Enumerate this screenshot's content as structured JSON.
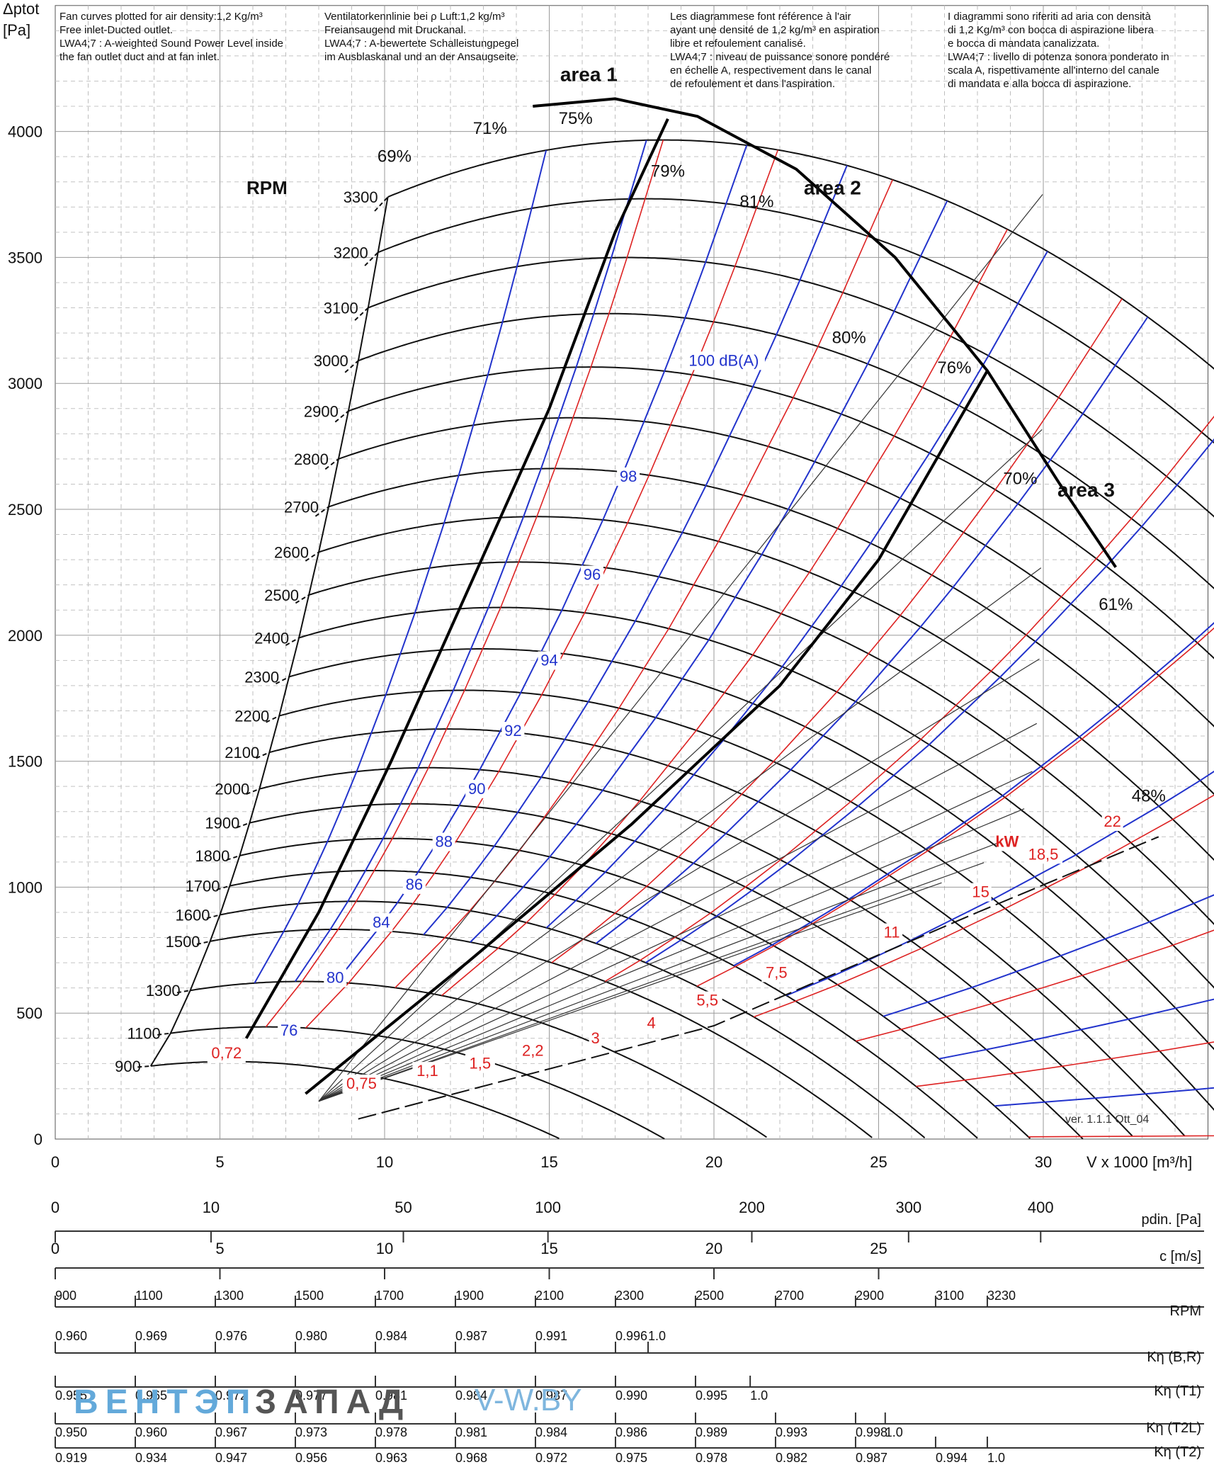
{
  "header": {
    "y_title": "Δptot",
    "y_unit": "[Pa]",
    "x_title": "V x 1000 [m³/h]",
    "rpm_label": "RPM",
    "version": "ver. 1.1.1 Ott_04"
  },
  "notes": {
    "en": [
      "Fan curves plotted for air density:1,2 Kg/m³",
      "Free inlet-Ducted outlet.",
      "LWA4;7 : A-weighted Sound Power Level inside",
      "the fan outlet duct and at fan inlet."
    ],
    "de": [
      "Ventilatorkennlinie bei ρ Luft:1,2 kg/m³",
      "Freiansaugend mit Druckanal.",
      "LWA4;7 : A-bewertete Schalleistungpegel",
      "im Ausblaskanal und an der Ansaugseite."
    ],
    "fr": [
      "Les diagrammese font référence à l'air",
      "ayant une densité de 1,2 kg/m³ en aspiration",
      "libre et refoulement canalisé.",
      "LWA4;7 : niveau de puissance sonore pondéré",
      "en échelle A, respectivement dans le canal",
      "de refoulement et dans l'aspiration."
    ],
    "it": [
      "I diagrammi sono riferiti ad aria con densità",
      "di 1,2 Kg/m³ con bocca di aspirazione libera",
      "e bocca di mandata canalizzata.",
      "LWA4;7 : livello di potenza sonora ponderato in",
      "scala A, rispettivamente all'interno del canale",
      "di mandata e alla bocca di aspirazione."
    ]
  },
  "chart_data": {
    "type": "line",
    "x_label": "V x 1000 [m³/h]",
    "y_label": "Δptot [Pa]",
    "xlim": [
      0,
      35
    ],
    "ylim": [
      0,
      4500
    ],
    "x_ticks": [
      0,
      5,
      10,
      15,
      20,
      25,
      30
    ],
    "y_ticks": [
      0,
      500,
      1000,
      1500,
      2000,
      2500,
      3000,
      3500,
      4000
    ],
    "grid": true,
    "rpm_curves": [
      {
        "rpm": "900",
        "q0": 2.9,
        "p0": 290
      },
      {
        "rpm": "1100",
        "q0": 3.5,
        "p0": 420
      },
      {
        "rpm": "1300",
        "q0": 4.1,
        "p0": 590
      },
      {
        "rpm": "1500",
        "q0": 4.7,
        "p0": 785
      },
      {
        "rpm": "1600",
        "q0": 5.0,
        "p0": 890
      },
      {
        "rpm": "1700",
        "q0": 5.3,
        "p0": 1005
      },
      {
        "rpm": "1800",
        "q0": 5.6,
        "p0": 1125
      },
      {
        "rpm": "1900",
        "q0": 5.9,
        "p0": 1255
      },
      {
        "rpm": "2000",
        "q0": 6.2,
        "p0": 1390
      },
      {
        "rpm": "2100",
        "q0": 6.5,
        "p0": 1535
      },
      {
        "rpm": "2200",
        "q0": 6.8,
        "p0": 1680
      },
      {
        "rpm": "2300",
        "q0": 7.1,
        "p0": 1835
      },
      {
        "rpm": "2400",
        "q0": 7.4,
        "p0": 1990
      },
      {
        "rpm": "2500",
        "q0": 7.7,
        "p0": 2160
      },
      {
        "rpm": "2600",
        "q0": 8.0,
        "p0": 2330
      },
      {
        "rpm": "2700",
        "q0": 8.3,
        "p0": 2510
      },
      {
        "rpm": "2800",
        "q0": 8.6,
        "p0": 2700
      },
      {
        "rpm": "2900",
        "q0": 8.9,
        "p0": 2890
      },
      {
        "rpm": "3000",
        "q0": 9.2,
        "p0": 3090
      },
      {
        "rpm": "3100",
        "q0": 9.5,
        "p0": 3300
      },
      {
        "rpm": "3200",
        "q0": 9.8,
        "p0": 3520
      },
      {
        "rpm": "3300",
        "q0": 10.1,
        "p0": 3740
      }
    ],
    "efficiency_labels": [
      {
        "text": "69%",
        "x": 10.3,
        "y": 3880
      },
      {
        "text": "71%",
        "x": 13.2,
        "y": 3990
      },
      {
        "text": "75%",
        "x": 15.8,
        "y": 4030
      },
      {
        "text": "79%",
        "x": 18.6,
        "y": 3820
      },
      {
        "text": "81%",
        "x": 21.3,
        "y": 3700
      },
      {
        "text": "80%",
        "x": 24.1,
        "y": 3160
      },
      {
        "text": "76%",
        "x": 27.3,
        "y": 3040
      },
      {
        "text": "70%",
        "x": 29.3,
        "y": 2600
      },
      {
        "text": "61%",
        "x": 32.2,
        "y": 2100
      },
      {
        "text": "48%",
        "x": 33.2,
        "y": 1340
      }
    ],
    "area_labels": [
      {
        "text": "area 1",
        "x": 16.2,
        "y": 4200
      },
      {
        "text": "area 2",
        "x": 23.6,
        "y": 3750
      },
      {
        "text": "area 3",
        "x": 31.3,
        "y": 2550
      }
    ],
    "sound_labels": [
      {
        "text": "100 dB(A)",
        "x": 20.3,
        "y": 3070
      },
      {
        "text": "98",
        "x": 17.4,
        "y": 2610
      },
      {
        "text": "96",
        "x": 16.3,
        "y": 2220
      },
      {
        "text": "94",
        "x": 15.0,
        "y": 1880
      },
      {
        "text": "92",
        "x": 13.9,
        "y": 1600
      },
      {
        "text": "90",
        "x": 12.8,
        "y": 1370
      },
      {
        "text": "88",
        "x": 11.8,
        "y": 1160
      },
      {
        "text": "86",
        "x": 10.9,
        "y": 990
      },
      {
        "text": "84",
        "x": 9.9,
        "y": 840
      },
      {
        "text": "80",
        "x": 8.5,
        "y": 620
      },
      {
        "text": "76",
        "x": 7.1,
        "y": 410
      }
    ],
    "power_labels": [
      {
        "text": "0,72",
        "x": 5.2,
        "y": 320
      },
      {
        "text": "0,75",
        "x": 9.3,
        "y": 200
      },
      {
        "text": "1,1",
        "x": 11.3,
        "y": 250
      },
      {
        "text": "1,5",
        "x": 12.9,
        "y": 280
      },
      {
        "text": "2,2",
        "x": 14.5,
        "y": 330
      },
      {
        "text": "3",
        "x": 16.4,
        "y": 380
      },
      {
        "text": "4",
        "x": 18.1,
        "y": 440
      },
      {
        "text": "5,5",
        "x": 19.8,
        "y": 530
      },
      {
        "text": "7,5",
        "x": 21.9,
        "y": 640
      },
      {
        "text": "11",
        "x": 25.4,
        "y": 800
      },
      {
        "text": "15",
        "x": 28.1,
        "y": 960
      },
      {
        "text": "kW",
        "x": 28.9,
        "y": 1160
      },
      {
        "text": "18,5",
        "x": 30.0,
        "y": 1110
      },
      {
        "text": "22",
        "x": 32.1,
        "y": 1240
      }
    ],
    "scales": [
      {
        "label": "pdin. [Pa]",
        "ticks": [
          {
            "v": 0,
            "text": "0"
          },
          {
            "v": 4.73,
            "text": "10"
          },
          {
            "v": 10.57,
            "text": "50"
          },
          {
            "v": 14.96,
            "text": "100"
          },
          {
            "v": 21.15,
            "text": "200"
          },
          {
            "v": 25.91,
            "text": "300"
          },
          {
            "v": 29.92,
            "text": "400"
          }
        ]
      },
      {
        "label": "c [m/s]",
        "ticks": [
          {
            "v": 0,
            "text": "0"
          },
          {
            "v": 5,
            "text": "5"
          },
          {
            "v": 10,
            "text": "10"
          },
          {
            "v": 15,
            "text": "15"
          },
          {
            "v": 20,
            "text": "20"
          },
          {
            "v": 25,
            "text": "25"
          }
        ]
      },
      {
        "label": "RPM",
        "ticks": [
          {
            "v": 0,
            "text": "900"
          },
          {
            "v": 2.43,
            "text": "1100"
          },
          {
            "v": 4.86,
            "text": "1300"
          },
          {
            "v": 7.29,
            "text": "1500"
          },
          {
            "v": 9.72,
            "text": "1700"
          },
          {
            "v": 12.15,
            "text": "1900"
          },
          {
            "v": 14.58,
            "text": "2100"
          },
          {
            "v": 17.01,
            "text": "2300"
          },
          {
            "v": 19.44,
            "text": "2500"
          },
          {
            "v": 21.87,
            "text": "2700"
          },
          {
            "v": 24.3,
            "text": "2900"
          },
          {
            "v": 26.73,
            "text": "3100"
          },
          {
            "v": 28.3,
            "text": "3230"
          }
        ]
      },
      {
        "label": "Kη (B,R)",
        "ticks": [
          {
            "v": 0,
            "text": "0.960"
          },
          {
            "v": 2.43,
            "text": "0.969"
          },
          {
            "v": 4.86,
            "text": "0.976"
          },
          {
            "v": 7.29,
            "text": "0.980"
          },
          {
            "v": 9.72,
            "text": "0.984"
          },
          {
            "v": 12.15,
            "text": "0.987"
          },
          {
            "v": 14.58,
            "text": "0.991"
          },
          {
            "v": 17.01,
            "text": "0.996"
          },
          {
            "v": 18.0,
            "text": "1.0"
          }
        ]
      },
      {
        "label": "Kη (T1)",
        "ticks": [
          {
            "v": 0,
            "text": "0.955"
          },
          {
            "v": 2.43,
            "text": "0.965"
          },
          {
            "v": 4.86,
            "text": "0.972"
          },
          {
            "v": 7.29,
            "text": "0.977"
          },
          {
            "v": 9.72,
            "text": "0.981"
          },
          {
            "v": 12.15,
            "text": "0.984"
          },
          {
            "v": 14.58,
            "text": "0.987"
          },
          {
            "v": 17.01,
            "text": "0.990"
          },
          {
            "v": 19.44,
            "text": "0.995"
          },
          {
            "v": 21.1,
            "text": "1.0"
          }
        ]
      },
      {
        "label": "Kη (T2L)",
        "ticks": [
          {
            "v": 0,
            "text": "0.950"
          },
          {
            "v": 2.43,
            "text": "0.960"
          },
          {
            "v": 4.86,
            "text": "0.967"
          },
          {
            "v": 7.29,
            "text": "0.973"
          },
          {
            "v": 9.72,
            "text": "0.978"
          },
          {
            "v": 12.15,
            "text": "0.981"
          },
          {
            "v": 14.58,
            "text": "0.984"
          },
          {
            "v": 17.01,
            "text": "0.986"
          },
          {
            "v": 19.44,
            "text": "0.989"
          },
          {
            "v": 21.87,
            "text": "0.993"
          },
          {
            "v": 24.3,
            "text": "0.998"
          },
          {
            "v": 25.2,
            "text": "1.0"
          }
        ]
      },
      {
        "label": "Kη (T2)",
        "ticks": [
          {
            "v": 0,
            "text": "0.919"
          },
          {
            "v": 2.43,
            "text": "0.934"
          },
          {
            "v": 4.86,
            "text": "0.947"
          },
          {
            "v": 7.29,
            "text": "0.956"
          },
          {
            "v": 9.72,
            "text": "0.963"
          },
          {
            "v": 12.15,
            "text": "0.968"
          },
          {
            "v": 14.58,
            "text": "0.972"
          },
          {
            "v": 17.01,
            "text": "0.975"
          },
          {
            "v": 19.44,
            "text": "0.978"
          },
          {
            "v": 21.87,
            "text": "0.982"
          },
          {
            "v": 24.3,
            "text": "0.987"
          },
          {
            "v": 26.73,
            "text": "0.994"
          },
          {
            "v": 28.3,
            "text": "1.0"
          }
        ]
      }
    ]
  },
  "watermark": {
    "part1": "ВЕНТЭП",
    "part2": "ЗАПАД",
    "part3": "V-W.BY"
  }
}
